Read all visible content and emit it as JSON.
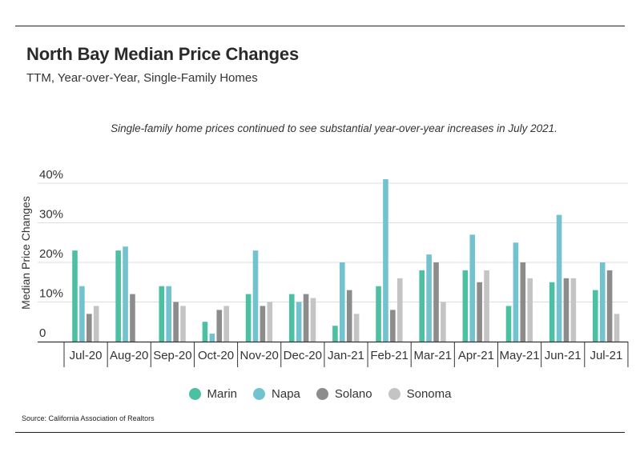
{
  "title": "North Bay Median Price Changes",
  "subtitle": "TTM, Year-over-Year, Single-Family Homes",
  "annotation": "Single-family home prices continued to see substantial year-over-year increases in July 2021.",
  "source": "Source:  California Association of Realtors",
  "chart_data": {
    "type": "bar",
    "title": "North Bay Median Price Changes",
    "subtitle": "TTM, Year-over-Year, Single-Family Homes",
    "xlabel": "",
    "ylabel": "Median Price Changes",
    "ylim": [
      0,
      40
    ],
    "yticks": [
      0,
      10,
      20,
      30,
      40
    ],
    "ytick_labels": [
      "0",
      "10%",
      "20%",
      "30%",
      "40%"
    ],
    "grid": true,
    "legend_position": "bottom",
    "categories": [
      "Jul-20",
      "Aug-20",
      "Sep-20",
      "Oct-20",
      "Nov-20",
      "Dec-20",
      "Jan-21",
      "Feb-21",
      "Mar-21",
      "Apr-21",
      "May-21",
      "Jun-21",
      "Jul-21"
    ],
    "series": [
      {
        "name": "Marin",
        "color": "#4dbfa3",
        "values": [
          23,
          23,
          14,
          5,
          12,
          12,
          4,
          14,
          18,
          18,
          9,
          15,
          13
        ]
      },
      {
        "name": "Napa",
        "color": "#72c3cf",
        "values": [
          14,
          24,
          14,
          2,
          23,
          10,
          20,
          41,
          22,
          27,
          25,
          32,
          20
        ]
      },
      {
        "name": "Solano",
        "color": "#8c8c8c",
        "values": [
          7,
          12,
          10,
          8,
          9,
          12,
          13,
          8,
          20,
          15,
          20,
          16,
          18
        ]
      },
      {
        "name": "Sonoma",
        "color": "#c4c4c4",
        "values": [
          9,
          null,
          9,
          9,
          10,
          11,
          7,
          16,
          10,
          18,
          16,
          16,
          7
        ]
      }
    ]
  }
}
